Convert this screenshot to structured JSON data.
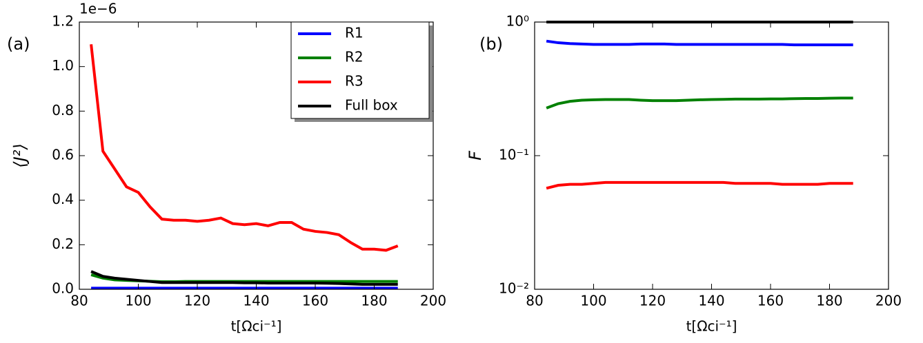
{
  "chart_data": [
    {
      "type": "line",
      "panel_label": "(a)",
      "ylabel": "⟨J²⟩",
      "xlabel": "t[Ωci⁻¹]",
      "offset_text": "1e−6",
      "x": [
        84,
        88,
        92,
        96,
        100,
        104,
        108,
        112,
        116,
        120,
        124,
        128,
        132,
        136,
        140,
        144,
        148,
        152,
        156,
        160,
        164,
        168,
        172,
        176,
        180,
        184,
        188
      ],
      "xlim": [
        80,
        200
      ],
      "xticks": [
        80,
        100,
        120,
        140,
        160,
        180,
        200
      ],
      "ylim": [
        0,
        1.2
      ],
      "yticks": [
        {
          "value": 0,
          "label": "0.0"
        },
        0.2,
        0.4,
        0.6,
        0.8,
        {
          "value": 1,
          "label": "1.0"
        },
        1.2
      ],
      "legend": "upper right",
      "series": [
        {
          "name": "R1",
          "color": "#0000ff",
          "values": [
            0.005,
            0.005,
            0.005,
            0.005,
            0.005,
            0.005,
            0.005,
            0.005,
            0.005,
            0.005,
            0.005,
            0.005,
            0.005,
            0.005,
            0.005,
            0.005,
            0.005,
            0.005,
            0.005,
            0.005,
            0.005,
            0.005,
            0.005,
            0.005,
            0.005,
            0.005,
            0.005
          ]
        },
        {
          "name": "R2",
          "color": "#008000",
          "values": [
            0.065,
            0.05,
            0.042,
            0.04,
            0.038,
            0.036,
            0.034,
            0.034,
            0.035,
            0.035,
            0.035,
            0.035,
            0.035,
            0.035,
            0.035,
            0.035,
            0.035,
            0.035,
            0.035,
            0.035,
            0.035,
            0.035,
            0.035,
            0.035,
            0.035,
            0.035,
            0.035
          ]
        },
        {
          "name": "R3",
          "color": "#ff0000",
          "values": [
            1.1,
            0.62,
            0.54,
            0.46,
            0.435,
            0.37,
            0.315,
            0.31,
            0.31,
            0.305,
            0.31,
            0.32,
            0.295,
            0.29,
            0.295,
            0.285,
            0.3,
            0.3,
            0.27,
            0.26,
            0.255,
            0.245,
            0.21,
            0.18,
            0.18,
            0.175,
            0.195
          ]
        },
        {
          "name": "Full box",
          "color": "#000000",
          "values": [
            0.08,
            0.058,
            0.05,
            0.045,
            0.04,
            0.035,
            0.03,
            0.03,
            0.03,
            0.03,
            0.03,
            0.03,
            0.03,
            0.029,
            0.029,
            0.028,
            0.028,
            0.028,
            0.028,
            0.028,
            0.027,
            0.026,
            0.024,
            0.022,
            0.022,
            0.022,
            0.022
          ]
        }
      ]
    },
    {
      "type": "line",
      "panel_label": "(b)",
      "ylabel": "F",
      "xlabel": "t[Ωci⁻¹]",
      "log": true,
      "x": [
        84,
        88,
        92,
        96,
        100,
        104,
        108,
        112,
        116,
        120,
        124,
        128,
        132,
        136,
        140,
        144,
        148,
        152,
        156,
        160,
        164,
        168,
        172,
        176,
        180,
        184,
        188
      ],
      "xlim": [
        80,
        200
      ],
      "xticks": [
        80,
        100,
        120,
        140,
        160,
        180,
        200
      ],
      "ylim": [
        0.01,
        1
      ],
      "yticks": [
        {
          "value": 0.01,
          "label": "10⁻²"
        },
        {
          "value": 0.1,
          "label": "10⁻¹"
        },
        {
          "value": 1,
          "label": "10⁰"
        }
      ],
      "series": [
        {
          "color": "#0000ff",
          "values": [
            0.72,
            0.7,
            0.69,
            0.685,
            0.68,
            0.68,
            0.68,
            0.68,
            0.685,
            0.685,
            0.685,
            0.68,
            0.68,
            0.68,
            0.68,
            0.68,
            0.68,
            0.68,
            0.68,
            0.68,
            0.68,
            0.675,
            0.675,
            0.675,
            0.675,
            0.675,
            0.675
          ]
        },
        {
          "color": "#008000",
          "values": [
            0.227,
            0.245,
            0.255,
            0.26,
            0.262,
            0.263,
            0.263,
            0.263,
            0.26,
            0.258,
            0.258,
            0.258,
            0.26,
            0.262,
            0.263,
            0.264,
            0.265,
            0.265,
            0.265,
            0.266,
            0.266,
            0.267,
            0.268,
            0.268,
            0.269,
            0.27,
            0.27
          ]
        },
        {
          "color": "#ff0000",
          "values": [
            0.057,
            0.06,
            0.061,
            0.061,
            0.062,
            0.063,
            0.063,
            0.063,
            0.063,
            0.063,
            0.063,
            0.063,
            0.063,
            0.063,
            0.063,
            0.063,
            0.062,
            0.062,
            0.062,
            0.062,
            0.061,
            0.061,
            0.061,
            0.061,
            0.062,
            0.062,
            0.062
          ]
        },
        {
          "color": "#000000",
          "values": [
            1,
            1,
            1,
            1,
            1,
            1,
            1,
            1,
            1,
            1,
            1,
            1,
            1,
            1,
            1,
            1,
            1,
            1,
            1,
            1,
            1,
            1,
            1,
            1,
            1,
            1,
            1
          ]
        }
      ]
    }
  ]
}
